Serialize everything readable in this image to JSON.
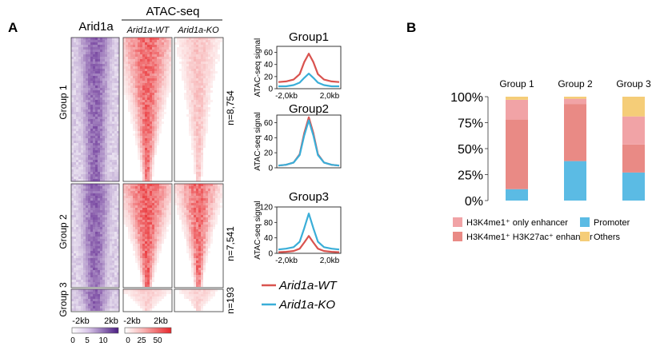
{
  "panel_a": {
    "label": "A",
    "heatmaps": {
      "arid1a_header": "Arid1a",
      "atac_header": "ATAC-seq",
      "wt_header": "Arid1a-WT",
      "ko_header": "Arid1a-KO",
      "groups": [
        {
          "label": "Group 1",
          "n": "n=8,754"
        },
        {
          "label": "Group 2",
          "n": "n=7,541"
        },
        {
          "label": "Group 3",
          "n": "n=193"
        }
      ],
      "x_left": "-2kb",
      "x_right": "2kb",
      "arid1a_scale": {
        "ticks": [
          "0",
          "5",
          "10"
        ],
        "color_low": "#ffffff",
        "color_high": "#4b1d83"
      },
      "atac_scale": {
        "ticks": [
          "0",
          "25",
          "50"
        ],
        "color_low": "#ffffff",
        "color_high": "#e8262a"
      }
    },
    "legend": {
      "wt": "Arid1a-WT",
      "ko": "Arid1a-KO",
      "wt_color": "#d9534f",
      "ko_color": "#3aaed8"
    }
  },
  "panel_b": {
    "label": "B"
  },
  "chart_data": [
    {
      "type": "line",
      "title": "Group1",
      "ylabel": "ATAC-seq signal",
      "x_tick_labels": [
        "-2,0kb",
        "2,0kb"
      ],
      "y_ticks": [
        0,
        20,
        40,
        60
      ],
      "ylim": [
        0,
        70
      ],
      "x": [
        -2,
        -1.5,
        -1,
        -0.6,
        -0.3,
        0,
        0.3,
        0.6,
        1,
        1.5,
        2
      ],
      "series": [
        {
          "name": "Arid1a-WT",
          "values": [
            11,
            12,
            15,
            24,
            44,
            58,
            44,
            24,
            15,
            12,
            11
          ]
        },
        {
          "name": "Arid1a-KO",
          "values": [
            4,
            4,
            6,
            10,
            18,
            25,
            18,
            10,
            6,
            4,
            4
          ]
        }
      ]
    },
    {
      "type": "line",
      "title": "Group2",
      "ylabel": "ATAC-seq signal",
      "x_tick_labels": [],
      "y_ticks": [
        0,
        20,
        40,
        60
      ],
      "ylim": [
        0,
        70
      ],
      "x": [
        -2,
        -1.5,
        -1,
        -0.6,
        -0.3,
        0,
        0.3,
        0.6,
        1,
        1.5,
        2
      ],
      "series": [
        {
          "name": "Arid1a-WT",
          "values": [
            3,
            4,
            7,
            18,
            46,
            67,
            46,
            18,
            7,
            4,
            3
          ]
        },
        {
          "name": "Arid1a-KO",
          "values": [
            3,
            4,
            7,
            17,
            43,
            63,
            43,
            17,
            7,
            4,
            3
          ]
        }
      ]
    },
    {
      "type": "line",
      "title": "Group3",
      "ylabel": "ATAC-seq signal",
      "x_tick_labels": [
        "-2,0kb",
        "2,0kb"
      ],
      "y_ticks": [
        0,
        40,
        80,
        120
      ],
      "ylim": [
        0,
        120
      ],
      "x": [
        -2,
        -1.5,
        -1,
        -0.6,
        -0.3,
        0,
        0.3,
        0.6,
        1,
        1.5,
        2
      ],
      "series": [
        {
          "name": "Arid1a-WT",
          "values": [
            3,
            4,
            6,
            12,
            28,
            45,
            28,
            12,
            6,
            4,
            3
          ]
        },
        {
          "name": "Arid1a-KO",
          "values": [
            10,
            12,
            16,
            30,
            65,
            103,
            65,
            30,
            16,
            12,
            10
          ]
        }
      ]
    },
    {
      "type": "bar",
      "stacked": true,
      "categories": [
        "Group 1",
        "Group 2",
        "Group 3"
      ],
      "y_tick_labels": [
        "0%",
        "25%",
        "50%",
        "75%",
        "100%"
      ],
      "ylim": [
        0,
        100
      ],
      "series": [
        {
          "name": "Promoter",
          "color": "#5bbbe4",
          "values": [
            11,
            38,
            27
          ]
        },
        {
          "name": "H3K4me1⁺ H3K27ac⁺ enhancer",
          "color": "#e98a85",
          "values": [
            67,
            55,
            27
          ]
        },
        {
          "name": "H3K4me1⁺ only enhancer",
          "color": "#f1a3a6",
          "values": [
            19,
            5,
            27
          ]
        },
        {
          "name": "Others",
          "color": "#f5cd78",
          "values": [
            3,
            2,
            19
          ]
        }
      ],
      "legend_order": [
        "H3K4me1⁺ only enhancer",
        "Promoter",
        "H3K4me1⁺ H3K27ac⁺ enhancer",
        "Others"
      ]
    }
  ]
}
